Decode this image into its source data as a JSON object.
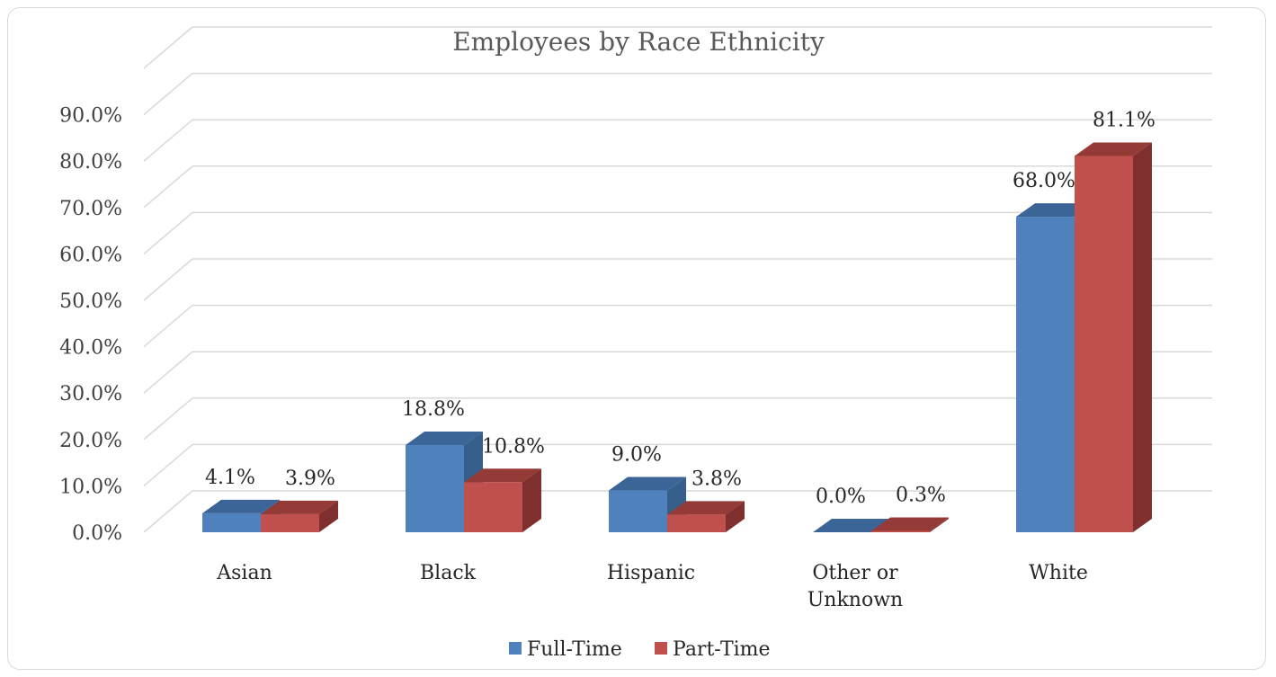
{
  "chart_data": {
    "type": "bar",
    "title": "Employees by Race Ethnicity",
    "categories": [
      "Asian",
      "Black",
      "Hispanic",
      "Other or Unknown",
      "White"
    ],
    "category_lines": [
      [
        "Asian"
      ],
      [
        "Black"
      ],
      [
        "Hispanic"
      ],
      [
        "Other or",
        "Unknown"
      ],
      [
        "White"
      ]
    ],
    "series": [
      {
        "name": "Full-Time",
        "values": [
          4.1,
          18.8,
          9.0,
          0.0,
          68.0
        ],
        "labels": [
          "4.1%",
          "18.8%",
          "9.0%",
          "0.0%",
          "68.0%"
        ],
        "color": "#4f81bd",
        "top_color": "#3b6596",
        "side_color": "#365f8c"
      },
      {
        "name": "Part-Time",
        "values": [
          3.9,
          10.8,
          3.8,
          0.3,
          81.1
        ],
        "labels": [
          "3.9%",
          "10.8%",
          "3.8%",
          "0.3%",
          "81.1%"
        ],
        "color": "#c0504d",
        "top_color": "#943b38",
        "side_color": "#7f302e"
      }
    ],
    "yticks": [
      "0.0%",
      "10.0%",
      "20.0%",
      "30.0%",
      "40.0%",
      "50.0%",
      "60.0%",
      "70.0%",
      "80.0%",
      "90.0%"
    ],
    "ylim": [
      0,
      90
    ],
    "grid": true,
    "legend_position": "bottom",
    "chart_style": "3d-clustered-column"
  }
}
